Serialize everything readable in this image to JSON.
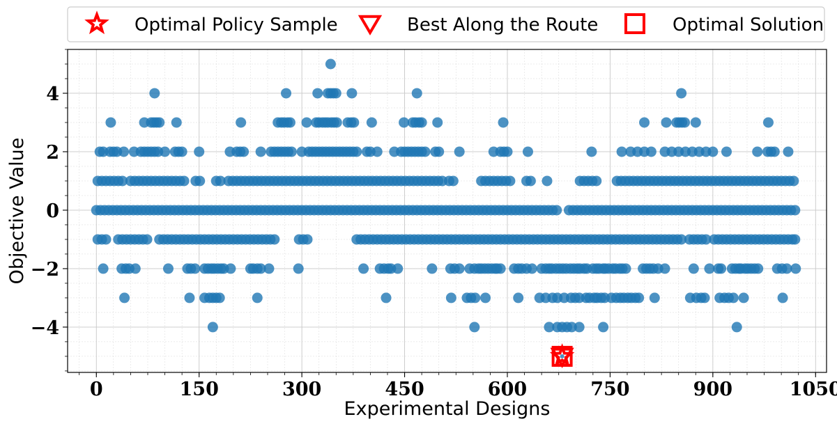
{
  "chart_data": {
    "type": "scatter",
    "xlabel": "Experimental Designs",
    "ylabel": "Objective Value",
    "xlim": [
      -42,
      1066
    ],
    "ylim": [
      -5.55,
      5.5
    ],
    "xticks": [
      0,
      150,
      300,
      450,
      600,
      750,
      900,
      1050
    ],
    "xtick_labels": [
      "0",
      "150",
      "300",
      "450",
      "600",
      "750",
      "900",
      "1050"
    ],
    "yticks": [
      -4,
      -2,
      0,
      2,
      4
    ],
    "ytick_labels": [
      "−4",
      "−2",
      "0",
      "2",
      "4"
    ],
    "grid": true,
    "legend_position": "top",
    "colors": {
      "points": "#1f77b4",
      "markers": "#ff0000",
      "grid": "#c8c8c8"
    },
    "legend": [
      {
        "label": "Optimal Policy Sample",
        "marker": "star"
      },
      {
        "label": "Best Along the Route",
        "marker": "triangle-down"
      },
      {
        "label": "Optimal Solution",
        "marker": "square"
      }
    ],
    "series": [
      {
        "type": "scatter",
        "marker": "circle",
        "points_by_value": [
          {
            "y": 5,
            "x": [
              342
            ]
          },
          {
            "y": 4,
            "x": [
              85,
              277,
              323,
              338,
              342,
              346,
              350,
              373,
              468,
              854
            ]
          },
          {
            "y": 3,
            "x": [
              21,
              70,
              80,
              84,
              88,
              92,
              117,
              211,
              265,
              270,
              274,
              279,
              283,
              307,
              321,
              325,
              330,
              334,
              338,
              343,
              347,
              351,
              367,
              372,
              376,
              402,
              449,
              462,
              466,
              471,
              475,
              498,
              594,
              800,
              832,
              847,
              851,
              855,
              859,
              875,
              981
            ]
          },
          {
            "y": 2,
            "x": [
              5,
              10,
              20,
              25,
              30,
              40,
              55,
              65,
              70,
              75,
              80,
              85,
              90,
              100,
              115,
              120,
              125,
              150,
              195,
              205,
              210,
              215,
              240,
              255,
              260,
              265,
              270,
              275,
              280,
              285,
              300,
              310,
              315,
              320,
              325,
              330,
              335,
              340,
              345,
              350,
              355,
              360,
              365,
              370,
              375,
              380,
              395,
              400,
              410,
              435,
              445,
              450,
              455,
              460,
              465,
              470,
              475,
              480,
              495,
              500,
              530,
              580,
              590,
              595,
              600,
              630,
              723,
              767,
              780,
              790,
              800,
              810,
              830,
              840,
              850,
              860,
              870,
              880,
              890,
              900,
              920,
              965,
              980,
              985,
              990,
              1010
            ]
          },
          {
            "y": 1,
            "x": [
              2,
              8,
              14,
              20,
              26,
              32,
              38,
              50,
              56,
              62,
              68,
              74,
              80,
              86,
              92,
              98,
              104,
              110,
              116,
              122,
              128,
              145,
              151,
              175,
              181,
              193,
              199,
              205,
              211,
              217,
              223,
              229,
              235,
              241,
              247,
              253,
              259,
              265,
              271,
              277,
              283,
              289,
              295,
              301,
              307,
              313,
              319,
              325,
              331,
              337,
              343,
              349,
              355,
              361,
              367,
              373,
              379,
              385,
              391,
              397,
              403,
              409,
              415,
              421,
              427,
              433,
              439,
              445,
              451,
              457,
              463,
              469,
              475,
              481,
              487,
              493,
              499,
              505,
              515,
              521,
              562,
              568,
              574,
              580,
              586,
              592,
              598,
              604,
              628,
              634,
              658,
              706,
              712,
              718,
              724,
              730,
              760,
              766,
              772,
              778,
              784,
              790,
              796,
              802,
              808,
              814,
              820,
              826,
              832,
              838,
              844,
              850,
              856,
              862,
              868,
              874,
              880,
              886,
              892,
              898,
              904,
              910,
              916,
              922,
              928,
              934,
              940,
              946,
              952,
              958,
              964,
              970,
              976,
              982,
              988,
              994,
              1000,
              1006,
              1012,
              1018
            ]
          },
          {
            "y": 0,
            "x": [
              0,
              6,
              12,
              18,
              24,
              30,
              36,
              42,
              48,
              54,
              60,
              66,
              72,
              78,
              84,
              90,
              96,
              102,
              108,
              114,
              120,
              126,
              132,
              138,
              144,
              150,
              156,
              162,
              168,
              174,
              180,
              186,
              192,
              198,
              204,
              210,
              216,
              222,
              228,
              234,
              240,
              246,
              252,
              258,
              264,
              270,
              276,
              282,
              288,
              294,
              300,
              306,
              312,
              318,
              324,
              330,
              336,
              342,
              348,
              354,
              360,
              366,
              372,
              378,
              384,
              390,
              396,
              402,
              408,
              414,
              420,
              426,
              432,
              438,
              444,
              450,
              456,
              462,
              468,
              474,
              480,
              486,
              492,
              498,
              504,
              510,
              516,
              522,
              528,
              534,
              540,
              546,
              552,
              558,
              564,
              570,
              576,
              582,
              588,
              594,
              600,
              606,
              612,
              618,
              624,
              630,
              636,
              642,
              648,
              654,
              660,
              666,
              672,
              690,
              696,
              702,
              708,
              714,
              720,
              726,
              732,
              738,
              744,
              750,
              756,
              762,
              768,
              774,
              780,
              786,
              792,
              798,
              804,
              810,
              816,
              822,
              828,
              834,
              840,
              846,
              852,
              858,
              864,
              870,
              876,
              882,
              888,
              894,
              900,
              906,
              912,
              918,
              924,
              930,
              936,
              942,
              948,
              954,
              960,
              966,
              972,
              978,
              984,
              990,
              996,
              1002,
              1008,
              1014,
              1020
            ]
          },
          {
            "y": -1,
            "x": [
              2,
              8,
              14,
              32,
              38,
              44,
              50,
              56,
              62,
              68,
              74,
              92,
              98,
              104,
              110,
              116,
              122,
              128,
              134,
              140,
              146,
              152,
              158,
              164,
              170,
              176,
              182,
              188,
              194,
              200,
              206,
              212,
              218,
              224,
              230,
              236,
              242,
              248,
              254,
              260,
              296,
              302,
              308,
              380,
              386,
              392,
              398,
              404,
              410,
              416,
              422,
              428,
              434,
              440,
              446,
              452,
              458,
              464,
              470,
              476,
              482,
              488,
              494,
              500,
              506,
              512,
              518,
              524,
              530,
              536,
              542,
              548,
              554,
              560,
              566,
              572,
              578,
              584,
              590,
              596,
              602,
              608,
              614,
              620,
              626,
              632,
              638,
              644,
              650,
              656,
              662,
              668,
              674,
              680,
              686,
              692,
              698,
              704,
              710,
              716,
              722,
              728,
              734,
              740,
              746,
              752,
              758,
              764,
              770,
              776,
              782,
              788,
              794,
              800,
              806,
              812,
              818,
              824,
              830,
              836,
              842,
              848,
              854,
              866,
              872,
              878,
              884,
              890,
              902,
              908,
              914,
              920,
              926,
              932,
              938,
              944,
              950,
              956,
              962,
              968,
              974,
              980,
              986,
              992,
              998,
              1004,
              1010,
              1016,
              1020
            ]
          },
          {
            "y": -2,
            "x": [
              10,
              37,
              43,
              48,
              57,
              105,
              133,
              138,
              144,
              158,
              163,
              168,
              172,
              177,
              182,
              186,
              196,
              225,
              229,
              235,
              240,
              252,
              295,
              390,
              414,
              420,
              426,
              430,
              440,
              490,
              517,
              523,
              530,
              545,
              552,
              558,
              562,
              567,
              572,
              577,
              582,
              585,
              590,
              610,
              616,
              621,
              628,
              636,
              650,
              656,
              661,
              665,
              671,
              676,
              681,
              686,
              692,
              697,
              702,
              706,
              712,
              716,
              725,
              730,
              734,
              740,
              743,
              748,
              754,
              758,
              764,
              768,
              773,
              798,
              803,
              808,
              813,
              820,
              830,
              872,
              895,
              908,
              912,
              928,
              933,
              938,
              941,
              947,
              951,
              956,
              961,
              966,
              994,
              1001,
              1008,
              1021
            ]
          },
          {
            "y": -3,
            "x": [
              41,
              136,
              158,
              165,
              170,
              175,
              180,
              235,
              423,
              518,
              541,
              547,
              553,
              568,
              616,
              647,
              656,
              666,
              673,
              683,
              693,
              699,
              705,
              715,
              720,
              727,
              731,
              737,
              742,
              752,
              759,
              765,
              770,
              776,
              781,
              787,
              792,
              815,
              867,
              876,
              883,
              888,
              910,
              917,
              923,
              930,
              945,
              1002
            ]
          },
          {
            "y": -4,
            "x": [
              170,
              552,
              661,
              673,
              680,
              687,
              694,
              705,
              740,
              935
            ]
          }
        ]
      },
      {
        "name": "Optimal Solution",
        "marker": "square",
        "points": [
          [
            680,
            -5
          ]
        ]
      },
      {
        "name": "Best Along the Route",
        "marker": "triangle-down",
        "points": [
          [
            680,
            -5
          ]
        ]
      },
      {
        "name": "Optimal Policy Sample",
        "marker": "star",
        "points": [
          [
            680,
            -5
          ]
        ]
      }
    ]
  }
}
